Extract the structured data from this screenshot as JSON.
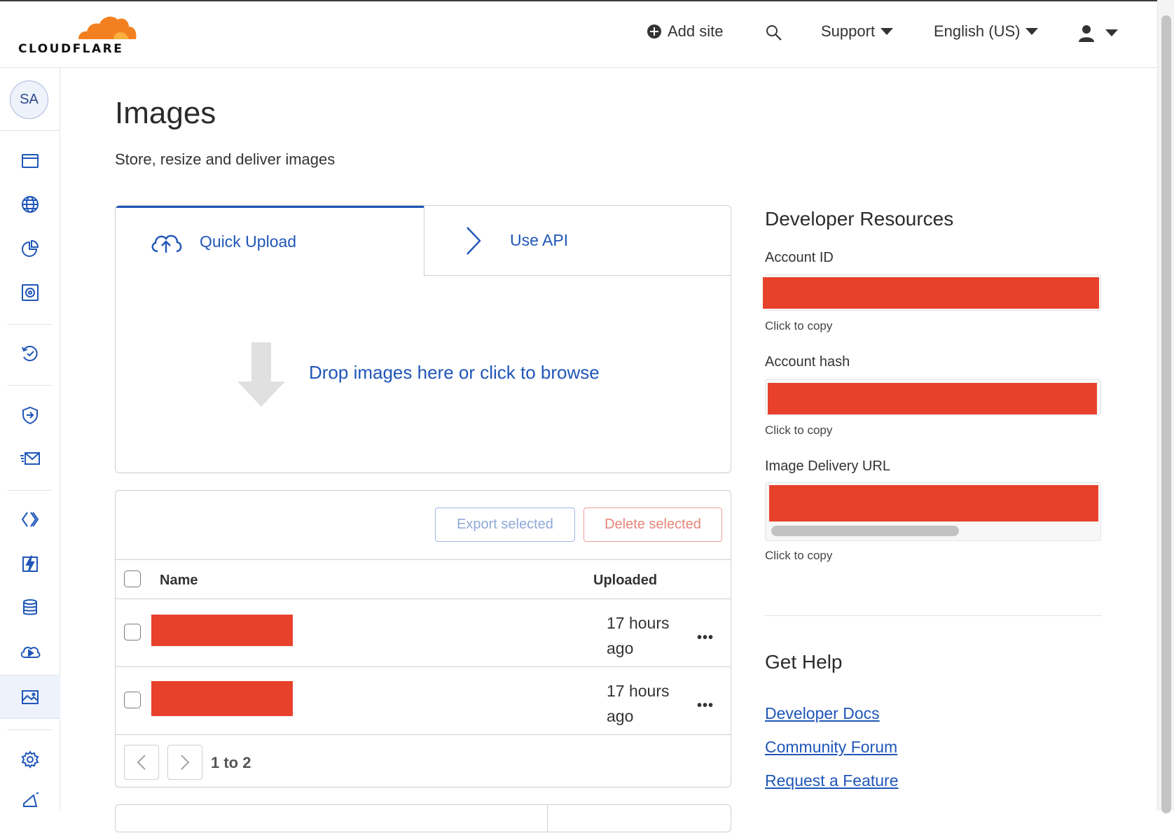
{
  "brand": {
    "logo_text": "CLOUDFLARE"
  },
  "header": {
    "add_site": "Add site",
    "support": "Support",
    "language": "English (US)"
  },
  "sidebar": {
    "avatar_initials": "SA",
    "icons": [
      "websites-icon",
      "domains-icon",
      "analytics-icon",
      "security-center-icon",
      "trace-icon",
      "zero-trust-icon",
      "email-icon",
      "workers-icon",
      "pages-icon",
      "storage-icon",
      "stream-icon",
      "images-icon",
      "settings-icon",
      "announcements-icon"
    ],
    "active": "images-icon"
  },
  "page": {
    "title": "Images",
    "subtitle": "Store, resize and deliver images"
  },
  "upload": {
    "tabs": [
      {
        "label": "Quick Upload",
        "icon": "cloud-upload-icon",
        "active": true
      },
      {
        "label": "Use API",
        "icon": "chevron-right-icon",
        "active": false
      }
    ],
    "drop_text": "Drop images here or click to browse"
  },
  "images_table": {
    "export_label": "Export selected",
    "delete_label": "Delete selected",
    "columns": [
      "Name",
      "Uploaded"
    ],
    "rows": [
      {
        "name": "",
        "uploaded_line1": "17 hours",
        "uploaded_line2": "ago",
        "menu": "•••"
      },
      {
        "name": "",
        "uploaded_line1": "17 hours",
        "uploaded_line2": "ago",
        "menu": "•••"
      }
    ],
    "pagination": "1 to 2"
  },
  "developer_resources": {
    "title": "Developer Resources",
    "fields": [
      {
        "label": "Account ID",
        "hint": "Click to copy"
      },
      {
        "label": "Account hash",
        "hint": "Click to copy"
      },
      {
        "label": "Image Delivery URL",
        "hint": "Click to copy"
      }
    ]
  },
  "help": {
    "title": "Get Help",
    "links": [
      "Developer Docs",
      "Community Forum",
      "Request a Feature"
    ]
  },
  "colors": {
    "accent": "#1f56b8",
    "redaction": "#e8412b",
    "brand_orange": "#f38020"
  }
}
